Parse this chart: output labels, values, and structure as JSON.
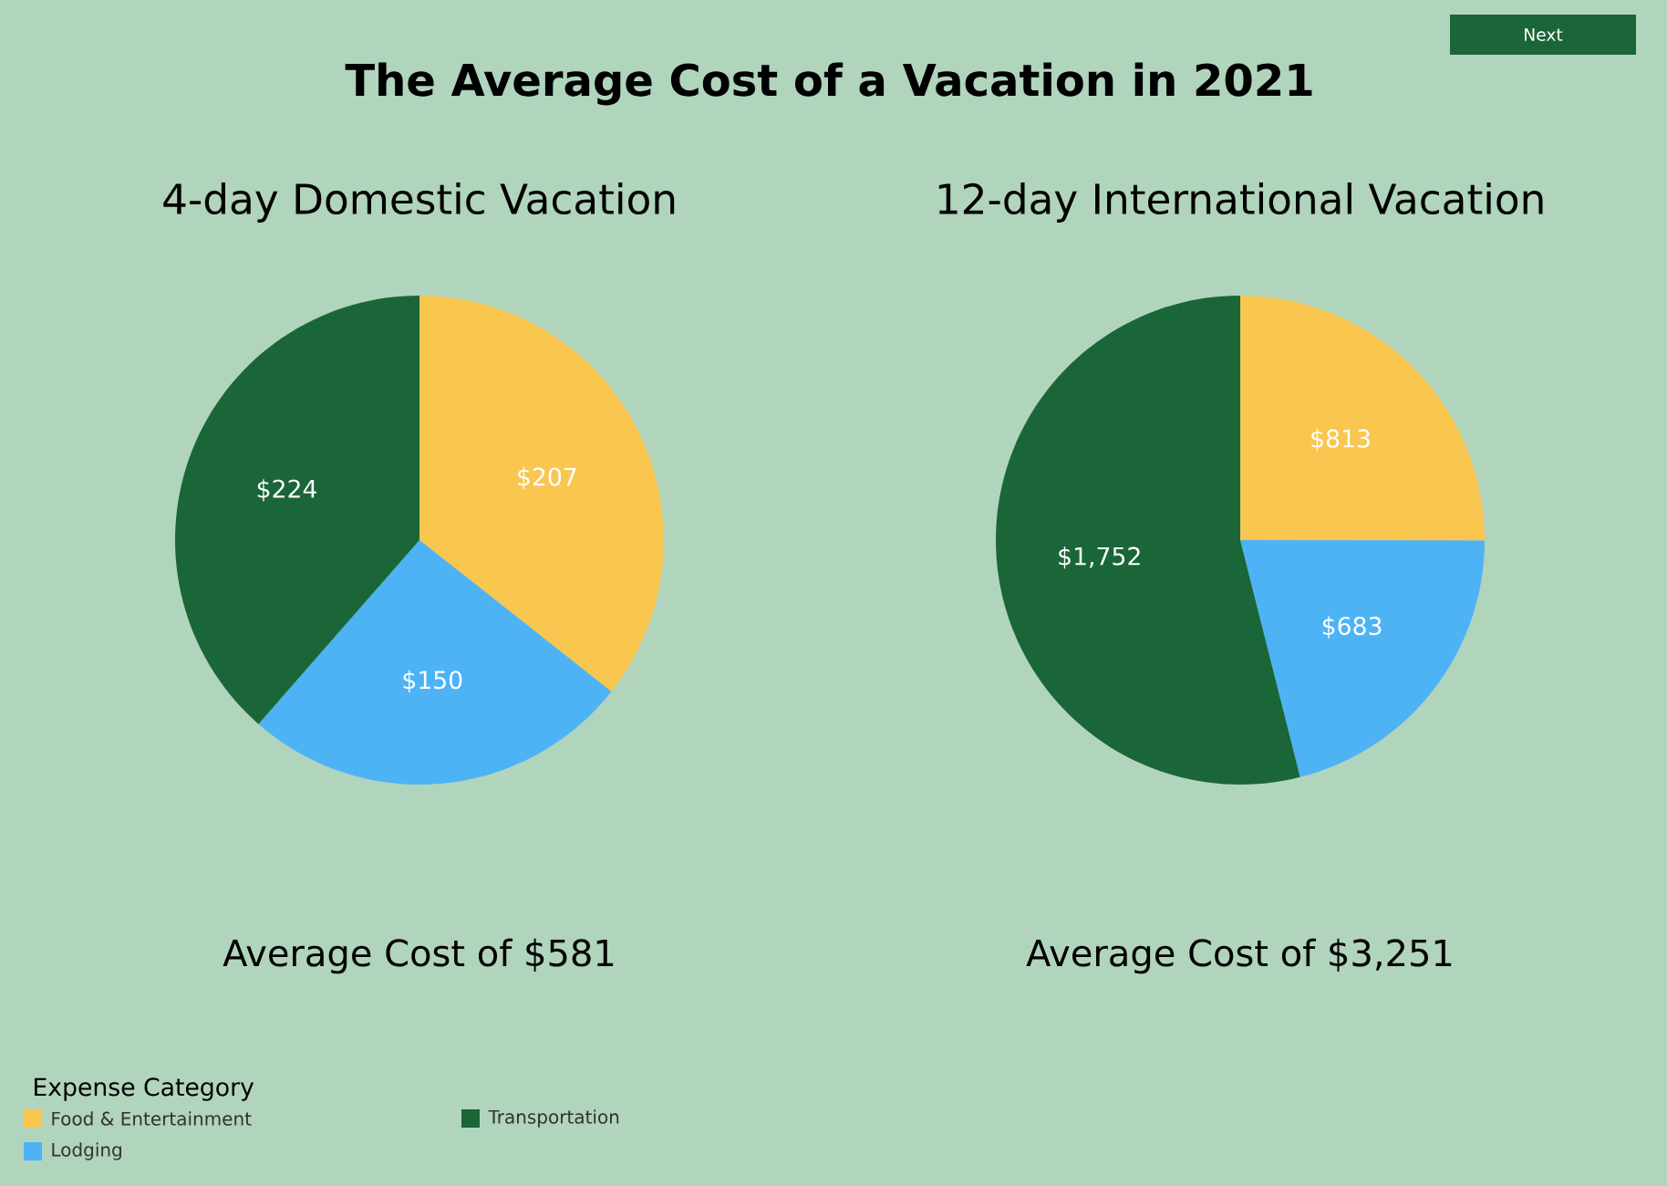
{
  "chart_data": [
    {
      "type": "pie",
      "title": "The Average Cost of a Vacation in 2021",
      "subtitle": "4-day Domestic Vacation",
      "annotations": [
        "Average Cost of $581",
        "Next"
      ],
      "legend_title": "Expense Category",
      "legend": "bottom left",
      "categories": [
        "Food & Entertainment",
        "Lodging",
        "Transportation"
      ],
      "values": [
        207,
        150,
        224
      ],
      "colors": [
        "#f9c650",
        "#4db3f5",
        "#1a6638"
      ],
      "value_labels": [
        "$207",
        "$150",
        "$224"
      ]
    },
    {
      "type": "pie",
      "title": "12-day International Vacation",
      "annotations": [
        "Average Cost of $3,251"
      ],
      "categories": [
        null,
        null,
        null
      ],
      "values": [
        813,
        683,
        1752
      ],
      "colors": [
        "#f9c650",
        "#4db3f5",
        "#1a6638"
      ],
      "value_labels": [
        "$813",
        "$683",
        "$1,752"
      ]
    }
  ]
}
